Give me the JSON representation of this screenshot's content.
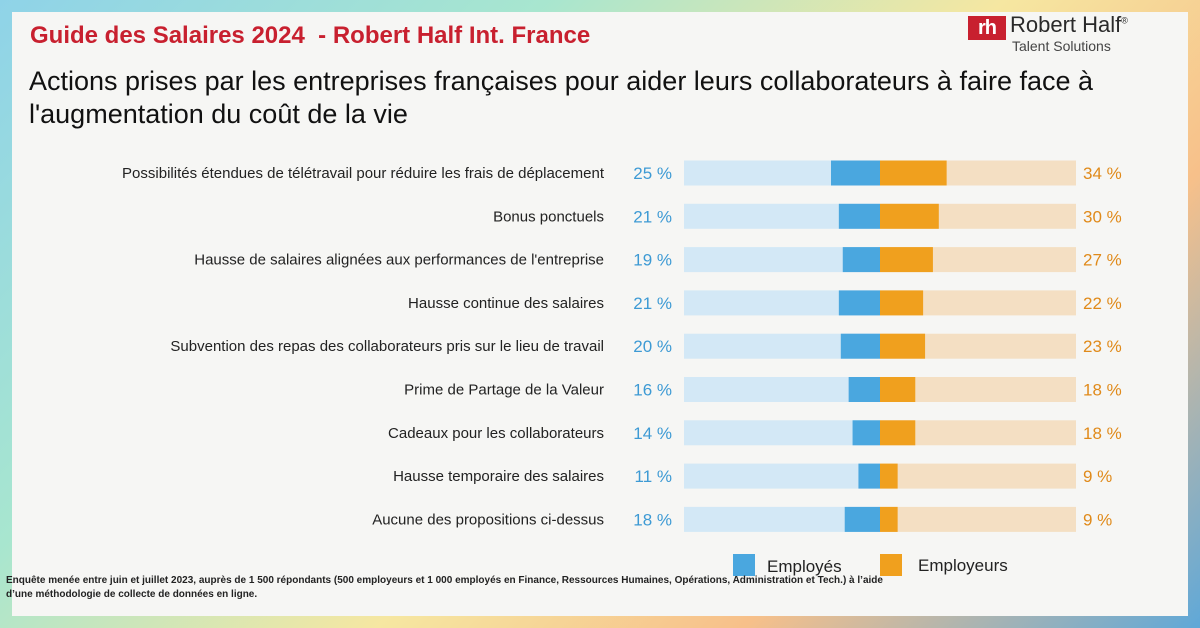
{
  "header": {
    "title": "Guide des Salaires 2024  - Robert Half Int. France",
    "subtitle": "Actions prises par les entreprises françaises pour aider leurs collaborateurs à faire face à l'augmentation du coût de la vie"
  },
  "logo": {
    "mark": "rh",
    "name": "Robert Half",
    "tagline": "Talent Solutions"
  },
  "footnote": "Enquête menée entre juin et juillet 2023, auprès de 1 500 répondants (500 employeurs et 1 000 employés en Finance, Ressources Humaines, Opérations, Administration et Tech.) à l’aide d’une méthodologie de collecte de données en ligne.",
  "colors": {
    "employes": "#4aa7df",
    "employes_track": "#d3e8f6",
    "employeurs": "#f0a01e",
    "employeurs_track": "#f4dfc3",
    "employes_text": "#3d9ad4",
    "employeurs_text": "#e08a1a",
    "title_red": "#c8202f"
  },
  "chart_data": {
    "type": "bar",
    "orientation": "horizontal-diverging",
    "value_suffix": " %",
    "xlim": [
      0,
      100
    ],
    "categories": [
      "Possibilités étendues de télétravail pour réduire les frais de déplacement",
      "Bonus ponctuels",
      "Hausse de salaires alignées aux performances de l'entreprise",
      "Hausse continue des salaires",
      "Subvention des repas des collaborateurs pris sur le lieu de travail",
      "Prime de Partage de la Valeur",
      "Cadeaux pour les collaborateurs",
      "Hausse temporaire des salaires",
      "Aucune des propositions ci-dessus"
    ],
    "series": [
      {
        "name": "Employés",
        "values": [
          25,
          21,
          19,
          21,
          20,
          16,
          14,
          11,
          18
        ]
      },
      {
        "name": "Employeurs",
        "values": [
          34,
          30,
          27,
          22,
          23,
          18,
          18,
          9,
          9
        ]
      }
    ],
    "legend_position": "bottom-right",
    "grid": false
  }
}
